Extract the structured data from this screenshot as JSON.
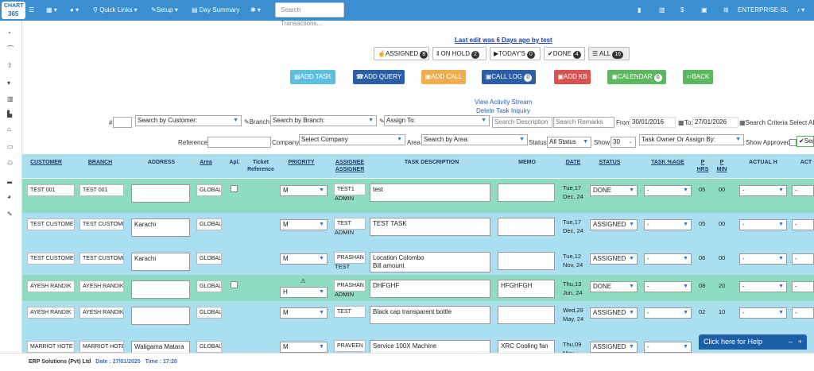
{
  "topbar": {
    "logo_line1": "CHART",
    "logo_line2": "365",
    "quick_links": "Quick Links",
    "setup": "Setup",
    "day_summary": "Day Summary",
    "search_placeholder": "Search Transactions...",
    "user": "ENTERPRISE-SL"
  },
  "last_edit": "Last edit was 6 Days ago by test",
  "filters": [
    {
      "label": "ASSIGNED",
      "count": "8"
    },
    {
      "label": "ON HOLD",
      "count": "2"
    },
    {
      "label": "TODAY'S",
      "count": "0"
    },
    {
      "label": "DONE",
      "count": "4"
    },
    {
      "label": "ALL",
      "count": "16"
    }
  ],
  "actions": {
    "add_task": "ADD TASK",
    "add_query": "ADD QUERY",
    "add_call": "ADD CALL",
    "call_log": "CALL LOG",
    "call_log_count": "0",
    "add_kb": "ADD KB",
    "calendar": "CALENDAR",
    "calendar_count": "0",
    "back": "BACK"
  },
  "links": {
    "activity_stream": "View Activity Stream",
    "delete_inquiry": "Delete Task Inquiry"
  },
  "search": {
    "hash": "#",
    "customer": "Search by Customer:",
    "branch_label": "Branch",
    "branch": "Search by Branch:",
    "assign_to": "Assign To:",
    "description": "Search Description",
    "remarks": "Search Remarks",
    "from_label": "From:",
    "from": "30/01/2016",
    "to_label": "To:",
    "to": "27/01/2026",
    "criteria_label": "Search Criteria",
    "criteria": "Select ALL",
    "reference_label": "Reference:",
    "company_label": "Company:",
    "company": "Select Company",
    "area_label": "Area",
    "area": "Search by Area:",
    "status_label": "Status",
    "status": "All Status",
    "show_label": "Show:",
    "show": "30",
    "owner": "Task Owner Or Assign By:",
    "approved_label": "Show Approved:",
    "search_btn": "Search"
  },
  "columns": {
    "customer": "CUSTOMER",
    "branch": "BRANCH",
    "address": "ADDRESS",
    "area": "Area",
    "apl": "Apl.",
    "ticket": "Ticket Reference",
    "priority": "PRIORITY",
    "assignee": "ASSIGNEE ASSIGNER",
    "desc": "TASK DESCRIPTION",
    "memo": "MEMO",
    "date": "DATE",
    "status": "STATUS",
    "task_age": "TASK %AGE",
    "phrs": "P HRS",
    "pmin": "P MIN",
    "actual_h": "ACTUAL H",
    "act": "ACT"
  },
  "rows": [
    {
      "customer": "TEST 001",
      "branch": "TEST 001",
      "address": "",
      "area": "GLOBAL",
      "priority": "M",
      "assignee": "TEST1",
      "assigner": "ADMIN",
      "desc": "test",
      "memo": "",
      "date": "Tue,17 Dec, 24",
      "status": "DONE",
      "age": "-",
      "phrs": "05",
      "pmin": "00"
    },
    {
      "customer": "TEST CUSTOME",
      "branch": "TEST CUSTOME",
      "address": "Karachi",
      "area": "GLOBAL",
      "priority": "M",
      "assignee": "TEST",
      "assigner": "ADMIN",
      "desc": "TEST TASK",
      "memo": "",
      "date": "Tue,17 Dec, 24",
      "status": "ASSIGNED",
      "age": "-",
      "phrs": "05",
      "pmin": "00"
    },
    {
      "customer": "TEST CUSTOME",
      "branch": "TEST CUSTOME",
      "address": "Karachi",
      "area": "GLOBAL",
      "priority": "M",
      "assignee": "PRASHAN",
      "assigner": "TEST",
      "desc": "Location Colombo\nBill amount",
      "memo": "",
      "date": "Tue,12 Nov, 24",
      "status": "ASSIGNED",
      "age": "-",
      "phrs": "06",
      "pmin": "00"
    },
    {
      "customer": "AYESH RANDIK",
      "branch": "AYESH RANDIK",
      "address": "",
      "area": "GLOBAL",
      "priority": "H",
      "assignee": "PRASHAN",
      "assigner": "ADMIN",
      "desc": "DHFGHF",
      "memo": "HFGHFGH",
      "date": "Thu,13 Jun, 24",
      "status": "DONE",
      "age": "-",
      "phrs": "08",
      "pmin": "20"
    },
    {
      "customer": "AYESH RANDIK",
      "branch": "AYESH RANDIK",
      "address": "",
      "area": "GLOBAL",
      "priority": "M",
      "assignee": "TEST",
      "assigner": "",
      "desc": "Black cap transparent bottle",
      "memo": "",
      "date": "Wed,29 May, 24",
      "status": "ASSIGNED",
      "age": "-",
      "phrs": "02",
      "pmin": "10"
    },
    {
      "customer": "MARRIOT HOTE",
      "branch": "MARRIOT HOTE",
      "address": "Waligama Matara",
      "area": "GLOBAL",
      "priority": "M",
      "assignee": "PRAVEEN",
      "assigner": "",
      "desc": "Service 100X Machine",
      "memo": "XRC Cooling fan",
      "date": "Thu,09 May,",
      "status": "ASSIGNED",
      "age": "-",
      "phrs": "",
      "pmin": ""
    }
  ],
  "footer": {
    "company": "ERP Solutions (Pvt) Ltd",
    "date_label": "Date :",
    "date": "27/01/2025",
    "time_label": "Time :",
    "time": "17:20"
  },
  "help": "Click here for Help",
  "colors": {
    "topbar": "#3a8fd0",
    "row_green": "#8fdcc4",
    "row_blue": "#a9dff0",
    "header": "#a9dff0"
  }
}
